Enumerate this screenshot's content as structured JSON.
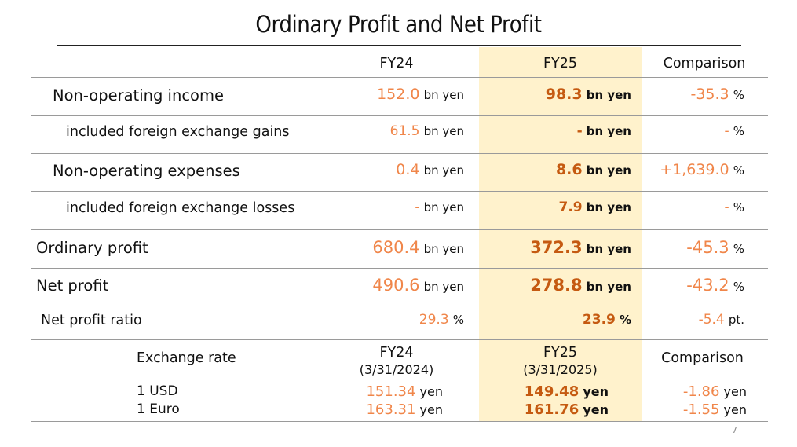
{
  "title": "Ordinary Profit and Net Profit",
  "colors": {
    "fy24": "#F0864A",
    "fy25": "#C55A11",
    "highlight": "#FFF2CC"
  },
  "header": {
    "fy24": "FY24",
    "fy25": "FY25",
    "comparison": "Comparison"
  },
  "rows": [
    {
      "label": "Non-operating income",
      "fy24": "152.0",
      "fy24_unit": "bn yen",
      "fy25": "98.3",
      "fy25_unit": "bn yen",
      "cmp": "-35.3",
      "cmp_unit": "%"
    },
    {
      "label": "included foreign exchange gains",
      "fy24": "61.5",
      "fy24_unit": "bn yen",
      "fy25": "-",
      "fy25_unit": "bn yen",
      "cmp": "-",
      "cmp_unit": "%"
    },
    {
      "label": "Non-operating expenses",
      "fy24": "0.4",
      "fy24_unit": "bn yen",
      "fy25": "8.6",
      "fy25_unit": "bn yen",
      "cmp": "+1,639.0",
      "cmp_unit": "%"
    },
    {
      "label": "included foreign exchange losses",
      "fy24": "-",
      "fy24_unit": "bn yen",
      "fy25": "7.9",
      "fy25_unit": "bn yen",
      "cmp": "-",
      "cmp_unit": "%"
    },
    {
      "label": "Ordinary profit",
      "fy24": "680.4",
      "fy24_unit": "bn yen",
      "fy25": "372.3",
      "fy25_unit": "bn yen",
      "cmp": "-45.3",
      "cmp_unit": "%"
    },
    {
      "label": "Net profit",
      "fy24": "490.6",
      "fy24_unit": "bn yen",
      "fy25": "278.8",
      "fy25_unit": "bn yen",
      "cmp": "-43.2",
      "cmp_unit": "%"
    },
    {
      "label": "Net profit ratio",
      "fy24": "29.3",
      "fy24_unit": "%",
      "fy25": "23.9",
      "fy25_unit": "%",
      "cmp": "-5.4",
      "cmp_unit": "pt."
    }
  ],
  "exchange": {
    "label": "Exchange rate",
    "fy24": "FY24",
    "fy24_date": "(3/31/2024)",
    "fy25": "FY25",
    "fy25_date": "(3/31/2025)",
    "comparison": "Comparison",
    "rows": [
      {
        "label": "1 USD",
        "fy24": "151.34",
        "fy25": "149.48",
        "cmp": "-1.86",
        "unit": "yen"
      },
      {
        "label": "1 Euro",
        "fy24": "163.31",
        "fy25": "161.76",
        "cmp": "-1.55",
        "unit": "yen"
      }
    ]
  },
  "page_number": "7"
}
